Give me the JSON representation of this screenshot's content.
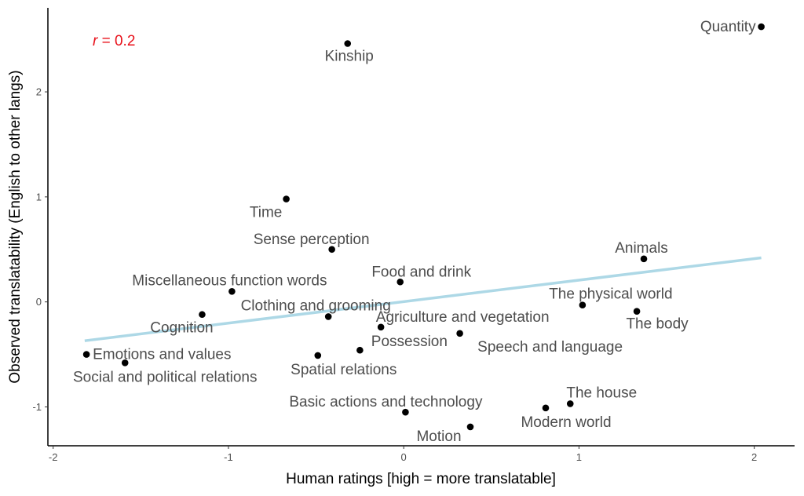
{
  "chart_data": {
    "type": "scatter",
    "xlabel": "Human ratings [high = more translatable]",
    "ylabel": "Observed translatability (English to other langs)",
    "xlim": [
      -2.03,
      2.23
    ],
    "ylim": [
      -1.37,
      2.8
    ],
    "x_ticks": [
      -2,
      -1,
      0,
      1,
      2
    ],
    "x_tick_labels": [
      "-2",
      "-1",
      "0",
      "1",
      "2"
    ],
    "y_ticks": [
      -1,
      0,
      1,
      2
    ],
    "y_tick_labels": [
      "-1",
      "0",
      "1",
      "2"
    ],
    "grid": false,
    "annotation": {
      "var": "r",
      "rest": " = 0.2",
      "color": "#e8101a"
    },
    "trend_line": {
      "x": [
        -1.82,
        2.04
      ],
      "y": [
        -0.37,
        0.42
      ],
      "color": "#add8e6"
    },
    "points": [
      {
        "label": "Quantity",
        "x": 2.04,
        "y": 2.62
      },
      {
        "label": "Kinship",
        "x": -0.32,
        "y": 2.46
      },
      {
        "label": "Time",
        "x": -0.67,
        "y": 0.98
      },
      {
        "label": "Sense perception",
        "x": -0.41,
        "y": 0.5
      },
      {
        "label": "Animals",
        "x": 1.37,
        "y": 0.41
      },
      {
        "label": "Food and drink",
        "x": -0.02,
        "y": 0.19
      },
      {
        "label": "Miscellaneous function words",
        "x": -0.98,
        "y": 0.1
      },
      {
        "label": "The physical world",
        "x": 1.02,
        "y": -0.03
      },
      {
        "label": "The body",
        "x": 1.33,
        "y": -0.09
      },
      {
        "label": "Cognition",
        "x": -1.15,
        "y": -0.12
      },
      {
        "label": "Clothing and grooming",
        "x": -0.43,
        "y": -0.14
      },
      {
        "label": "Agriculture and vegetation",
        "x": -0.13,
        "y": -0.24
      },
      {
        "label": "Speech and language",
        "x": 0.32,
        "y": -0.3
      },
      {
        "label": "Possession",
        "x": -0.25,
        "y": -0.46
      },
      {
        "label": "Emotions and values",
        "x": -1.81,
        "y": -0.5
      },
      {
        "label": "Spatial relations",
        "x": -0.49,
        "y": -0.51
      },
      {
        "label": "Social and political relations",
        "x": -1.59,
        "y": -0.58
      },
      {
        "label": "The house",
        "x": 0.95,
        "y": -0.97
      },
      {
        "label": "Modern world",
        "x": 0.81,
        "y": -1.01
      },
      {
        "label": "Basic actions and technology",
        "x": 0.01,
        "y": -1.05
      },
      {
        "label": "Motion",
        "x": 0.38,
        "y": -1.19
      }
    ]
  }
}
